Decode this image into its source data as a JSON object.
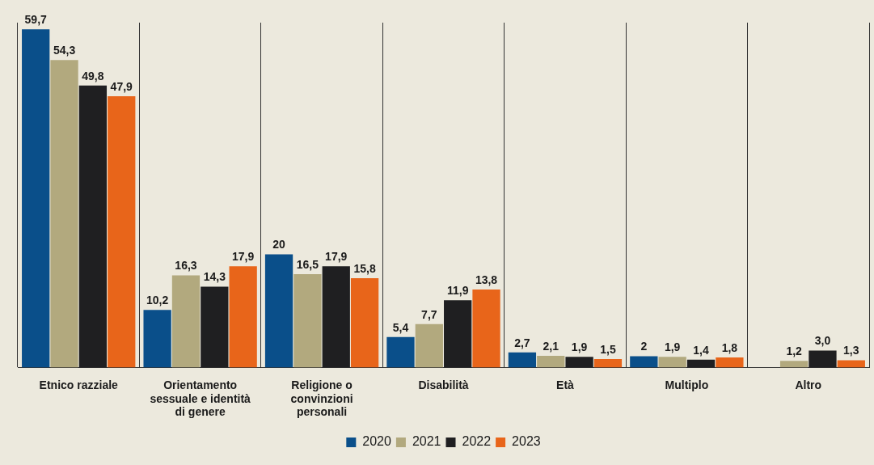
{
  "chart_data": {
    "type": "bar",
    "categories": [
      "Etnico razziale",
      "Orientamento sessuale e identità di genere",
      "Religione o convinzioni personali",
      "Disabilità",
      "Età",
      "Multiplo",
      "Altro"
    ],
    "series": [
      {
        "name": "2020",
        "color": "#0a4f8a",
        "values": [
          59.7,
          10.2,
          20,
          5.4,
          2.7,
          2,
          null
        ],
        "value_labels": [
          "59,7",
          "10,2",
          "20",
          "5,4",
          "2,7",
          "2",
          null
        ]
      },
      {
        "name": "2021",
        "color": "#b2a97e",
        "values": [
          54.3,
          16.3,
          16.5,
          7.7,
          2.1,
          1.9,
          1.2
        ],
        "value_labels": [
          "54,3",
          "16,3",
          "16,5",
          "7,7",
          "2,1",
          "1,9",
          "1,2"
        ]
      },
      {
        "name": "2022",
        "color": "#1f1f21",
        "values": [
          49.8,
          14.3,
          17.9,
          11.9,
          1.9,
          1.4,
          3.0
        ],
        "value_labels": [
          "49,8",
          "14,3",
          "17,9",
          "11,9",
          "1,9",
          "1,4",
          "3,0"
        ]
      },
      {
        "name": "2023",
        "color": "#e8651a",
        "values": [
          47.9,
          17.9,
          15.8,
          13.8,
          1.5,
          1.8,
          1.3
        ],
        "value_labels": [
          "47,9",
          "17,9",
          "15,8",
          "13,8",
          "1,5",
          "1,8",
          "1,3"
        ]
      }
    ],
    "grid": "x",
    "legend": "bottom"
  }
}
